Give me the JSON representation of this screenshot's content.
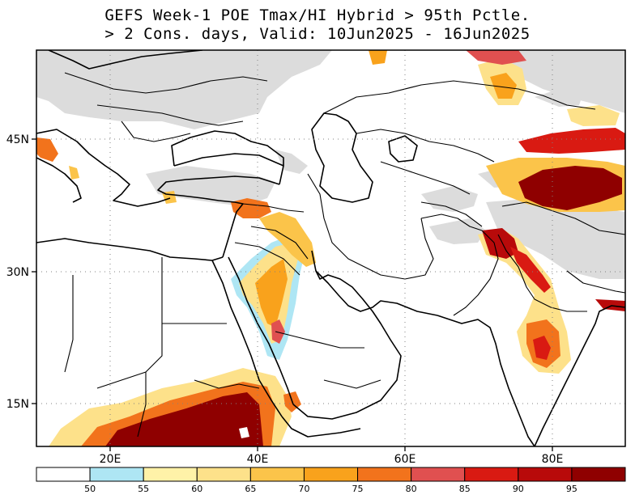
{
  "title": {
    "line1": "GEFS Week-1 POE Tmax/HI Hybrid > 95th Pctle.",
    "line2": "> 2 Cons. days, Valid: 10Jun2025 - 16Jun2025"
  },
  "axes": {
    "x_ticks": [
      "20E",
      "40E",
      "60E",
      "80E"
    ],
    "y_ticks": [
      "45N",
      "30N",
      "15N"
    ],
    "x_values": [
      20,
      40,
      60,
      80
    ],
    "y_values": [
      45,
      30,
      15
    ],
    "lon_range": [
      10,
      90
    ],
    "lat_range": [
      10,
      55
    ],
    "grid": "dotted"
  },
  "colorbar": {
    "labels": [
      "50",
      "55",
      "60",
      "65",
      "70",
      "75",
      "80",
      "85",
      "90",
      "95"
    ],
    "colors": [
      "#ffffff",
      "#aee6f4",
      "#fff2a8",
      "#fde18a",
      "#fbc44a",
      "#f9a21c",
      "#f2731c",
      "#e05050",
      "#d91a12",
      "#b80a0a",
      "#8f0000"
    ]
  },
  "colors": {
    "land_mask": "#dcdcdc",
    "border": "#000000"
  }
}
